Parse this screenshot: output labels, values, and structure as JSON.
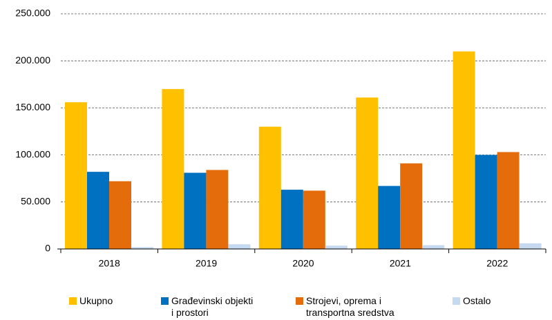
{
  "chart_data": {
    "type": "bar",
    "categories": [
      "2018",
      "2019",
      "2020",
      "2021",
      "2022"
    ],
    "series": [
      {
        "name": "Ukupno",
        "color": "#ffc000",
        "values": [
          156000,
          170000,
          130000,
          161000,
          210000
        ]
      },
      {
        "name": "Građevinski objekti i prostori",
        "color": "#0070c0",
        "values": [
          82000,
          81000,
          63000,
          67000,
          100000
        ]
      },
      {
        "name": "Strojevi, oprema i transportna sredstva",
        "color": "#e46c0a",
        "values": [
          72000,
          84000,
          62000,
          91000,
          103000
        ]
      },
      {
        "name": "Ostalo",
        "color": "#c5d9f1",
        "values": [
          2000,
          5000,
          3500,
          4000,
          6000
        ]
      }
    ],
    "ylim": [
      0,
      250000
    ],
    "yticks": [
      0,
      {
        "value": 50000,
        "label": "50.000"
      },
      {
        "value": 100000,
        "label": "100.000"
      },
      {
        "value": 150000,
        "label": "150.000"
      },
      {
        "value": 200000,
        "label": "200.000"
      },
      {
        "value": 250000,
        "label": "250.000"
      }
    ],
    "grid": true
  }
}
